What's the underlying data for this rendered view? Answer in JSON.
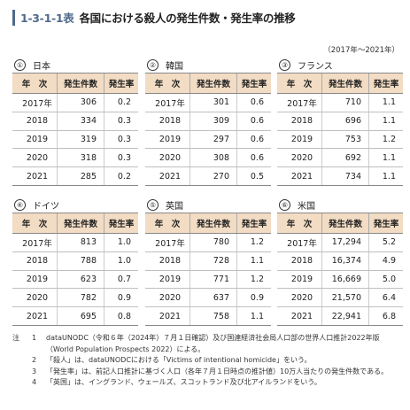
{
  "title": {
    "number": "1-3-1-1表",
    "text": "各国における殺人の発生件数・発生率の推移"
  },
  "period": "（2017年～2021年）",
  "columns": {
    "year": "年　次",
    "count": "発生件数",
    "rate": "発生率"
  },
  "panels": [
    {
      "marker": "①",
      "country": "日本",
      "rows": [
        {
          "year": "2017年",
          "count": "306",
          "rate": "0.2"
        },
        {
          "year": "2018",
          "count": "334",
          "rate": "0.3"
        },
        {
          "year": "2019",
          "count": "319",
          "rate": "0.3"
        },
        {
          "year": "2020",
          "count": "318",
          "rate": "0.3"
        },
        {
          "year": "2021",
          "count": "285",
          "rate": "0.2"
        }
      ]
    },
    {
      "marker": "②",
      "country": "韓国",
      "rows": [
        {
          "year": "2017年",
          "count": "301",
          "rate": "0.6"
        },
        {
          "year": "2018",
          "count": "309",
          "rate": "0.6"
        },
        {
          "year": "2019",
          "count": "297",
          "rate": "0.6"
        },
        {
          "year": "2020",
          "count": "308",
          "rate": "0.6"
        },
        {
          "year": "2021",
          "count": "270",
          "rate": "0.5"
        }
      ]
    },
    {
      "marker": "③",
      "country": "フランス",
      "rows": [
        {
          "year": "2017年",
          "count": "710",
          "rate": "1.1"
        },
        {
          "year": "2018",
          "count": "696",
          "rate": "1.1"
        },
        {
          "year": "2019",
          "count": "753",
          "rate": "1.2"
        },
        {
          "year": "2020",
          "count": "692",
          "rate": "1.1"
        },
        {
          "year": "2021",
          "count": "734",
          "rate": "1.1"
        }
      ]
    },
    {
      "marker": "④",
      "country": "ドイツ",
      "rows": [
        {
          "year": "2017年",
          "count": "813",
          "rate": "1.0"
        },
        {
          "year": "2018",
          "count": "788",
          "rate": "1.0"
        },
        {
          "year": "2019",
          "count": "623",
          "rate": "0.7"
        },
        {
          "year": "2020",
          "count": "782",
          "rate": "0.9"
        },
        {
          "year": "2021",
          "count": "695",
          "rate": "0.8"
        }
      ]
    },
    {
      "marker": "⑤",
      "country": "英国",
      "rows": [
        {
          "year": "2017年",
          "count": "780",
          "rate": "1.2"
        },
        {
          "year": "2018",
          "count": "728",
          "rate": "1.1"
        },
        {
          "year": "2019",
          "count": "771",
          "rate": "1.2"
        },
        {
          "year": "2020",
          "count": "637",
          "rate": "0.9"
        },
        {
          "year": "2021",
          "count": "758",
          "rate": "1.1"
        }
      ]
    },
    {
      "marker": "⑥",
      "country": "米国",
      "rows": [
        {
          "year": "2017年",
          "count": "17,294",
          "rate": "5.2"
        },
        {
          "year": "2018",
          "count": "16,374",
          "rate": "4.9"
        },
        {
          "year": "2019",
          "count": "16,669",
          "rate": "5.0"
        },
        {
          "year": "2020",
          "count": "21,570",
          "rate": "6.4"
        },
        {
          "year": "2021",
          "count": "22,941",
          "rate": "6.8"
        }
      ]
    }
  ],
  "notes": {
    "label": "注",
    "items": [
      {
        "num": "1",
        "text": "dataUNODC（令和６年（2024年）７月１日確認）及び国連経済社会局人口部の世界人口推計2022年版（World Population Prospects 2022）による。"
      },
      {
        "num": "2",
        "text": "「殺人」は、dataUNODCにおける「Victims of intentional homicide」をいう。"
      },
      {
        "num": "3",
        "text": "「発生率」は、前記人口推計に基づく人口（各年７月１日時点の推計値）10万人当たりの発生件数である。"
      },
      {
        "num": "4",
        "text": "「英国」は、イングランド、ウェールズ、スコットランド及び北アイルランドをいう。"
      }
    ]
  }
}
